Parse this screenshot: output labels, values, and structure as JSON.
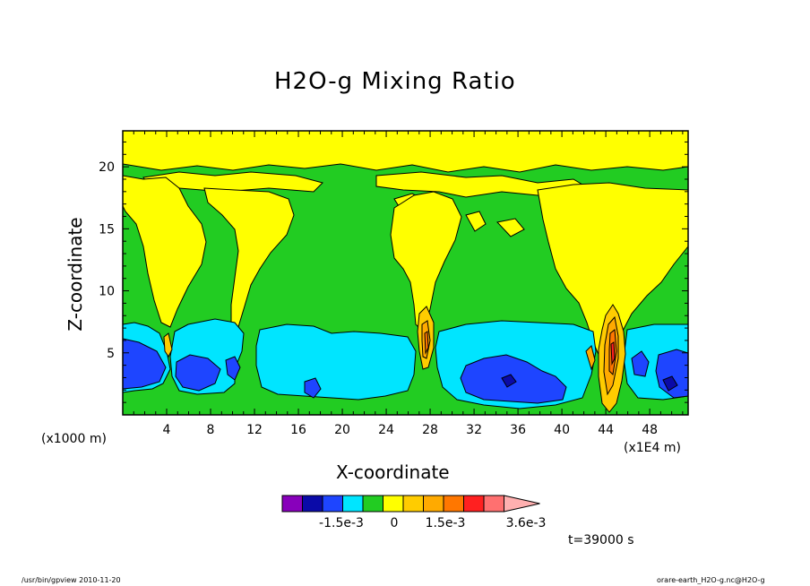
{
  "chart_data": {
    "type": "heatmap",
    "title": "H2O-g Mixing Ratio",
    "xlabel": "X-coordinate",
    "ylabel": "Z-coordinate",
    "x_unit_left": "(x1000 m)",
    "x_unit_right": "(x1E4 m)",
    "x_ticks": [
      "4",
      "8",
      "12",
      "16",
      "20",
      "24",
      "28",
      "32",
      "36",
      "40",
      "44",
      "48"
    ],
    "y_ticks": [
      "5",
      "10",
      "15",
      "20"
    ],
    "xlim": [
      0,
      51.5
    ],
    "ylim": [
      0,
      22.9
    ],
    "colorbar": {
      "labels": [
        "-1.5e-3",
        "0",
        "1.5e-3",
        "3.6e-3"
      ],
      "colors": [
        "#8800bb",
        "#0a0aa8",
        "#1e45ff",
        "#00e5ff",
        "#22cc22",
        "#ffff00",
        "#ffcc00",
        "#ffaa00",
        "#ff7700",
        "#ff2020",
        "#ff7070",
        "#ffb0b0"
      ]
    },
    "time_label": "t=39000 s",
    "footer_left": "/usr/bin/gpview  2010-11-20",
    "footer_right": "orare-earth_H2O-g.nc@H2O-g"
  }
}
